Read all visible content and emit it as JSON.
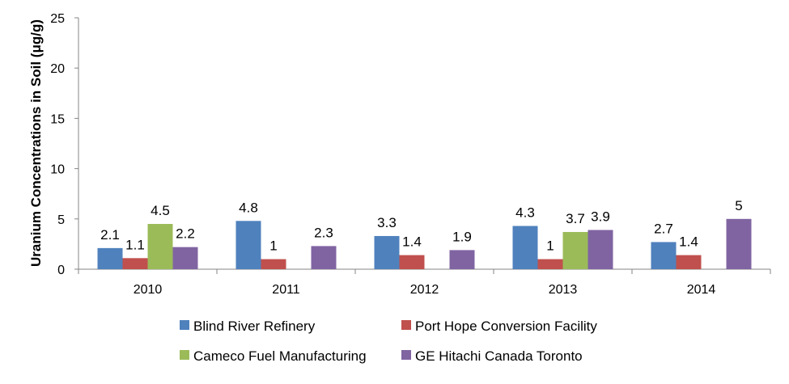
{
  "chart_data": {
    "type": "bar",
    "title": "",
    "xlabel": "",
    "ylabel": "Uranium Concentrations in Soil (μg/g)",
    "ylim": [
      0,
      25
    ],
    "yticks": [
      0,
      5,
      10,
      15,
      20,
      25
    ],
    "grid": false,
    "legend_position": "bottom",
    "categories": [
      "2010",
      "2011",
      "2012",
      "2013",
      "2014"
    ],
    "series": [
      {
        "name": "Blind River Refinery",
        "color": "#4F81BD",
        "values": [
          2.1,
          4.8,
          3.3,
          4.3,
          2.7
        ]
      },
      {
        "name": "Port Hope Conversion Facility",
        "color": "#C0504D",
        "values": [
          1.1,
          1,
          1.4,
          1,
          1.4
        ]
      },
      {
        "name": "Cameco Fuel Manufacturing",
        "color": "#9BBB59",
        "values": [
          4.5,
          null,
          null,
          3.7,
          null
        ]
      },
      {
        "name": "GE Hitachi Canada Toronto",
        "color": "#8064A2",
        "values": [
          2.2,
          2.3,
          1.9,
          3.9,
          5
        ]
      }
    ]
  }
}
